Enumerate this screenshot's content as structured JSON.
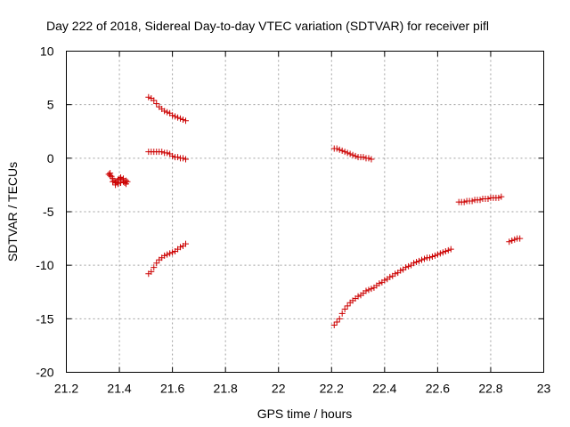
{
  "chart_data": {
    "type": "scatter",
    "title": "Day 222 of 2018, Sidereal Day-to-day VTEC variation (SDTVAR) for receiver pifl",
    "xlabel": "GPS time / hours",
    "ylabel": "SDTVAR / TECUs",
    "xlim": [
      21.2,
      23.0
    ],
    "ylim": [
      -20,
      10
    ],
    "xticks": [
      "21.2",
      "21.4",
      "21.6",
      "21.8",
      "22",
      "22.2",
      "22.4",
      "22.6",
      "22.8",
      "23"
    ],
    "yticks": [
      "-20",
      "-15",
      "-10",
      "-5",
      "0",
      "5",
      "10"
    ],
    "grid": true,
    "marker": "plus",
    "color": "#cc0000",
    "series": [
      {
        "x": [
          21.51,
          21.52,
          21.53,
          21.54,
          21.55,
          21.56,
          21.57,
          21.58,
          21.59,
          21.6,
          21.61,
          21.62,
          21.63,
          21.64,
          21.65
        ],
        "y": [
          5.7,
          5.6,
          5.4,
          5.1,
          4.8,
          4.6,
          4.4,
          4.3,
          4.2,
          4.0,
          3.9,
          3.8,
          3.7,
          3.6,
          3.5
        ]
      },
      {
        "x": [
          21.51,
          21.52,
          21.53,
          21.54,
          21.55,
          21.56,
          21.57,
          21.58,
          21.59,
          21.6,
          21.61,
          21.62,
          21.63,
          21.64,
          21.65
        ],
        "y": [
          0.6,
          0.6,
          0.6,
          0.6,
          0.6,
          0.6,
          0.5,
          0.5,
          0.4,
          0.2,
          0.1,
          0.1,
          0.0,
          0.0,
          -0.1
        ]
      },
      {
        "x": [
          21.51,
          21.52,
          21.53,
          21.54,
          21.55,
          21.56,
          21.57,
          21.58,
          21.59,
          21.6,
          21.61,
          21.62,
          21.63,
          21.64,
          21.65
        ],
        "y": [
          -10.8,
          -10.6,
          -10.2,
          -9.8,
          -9.5,
          -9.3,
          -9.1,
          -9.0,
          -8.9,
          -8.8,
          -8.7,
          -8.5,
          -8.3,
          -8.2,
          -8.0
        ]
      },
      {
        "x": [
          21.36,
          21.365,
          21.37,
          21.375,
          21.38,
          21.385,
          21.39,
          21.395,
          21.4,
          21.405,
          21.41,
          21.415,
          21.42,
          21.425,
          21.43,
          21.365,
          21.375,
          21.385,
          21.395,
          21.405,
          21.415,
          21.425
        ],
        "y": [
          -1.5,
          -1.6,
          -1.7,
          -1.9,
          -2.1,
          -2.3,
          -2.2,
          -2.0,
          -1.9,
          -1.8,
          -2.0,
          -2.2,
          -2.3,
          -2.4,
          -2.2,
          -1.4,
          -2.2,
          -2.5,
          -2.4,
          -2.3,
          -1.9,
          -2.1
        ]
      },
      {
        "x": [
          22.21,
          22.22,
          22.23,
          22.24,
          22.25,
          22.26,
          22.27,
          22.28,
          22.29,
          22.3,
          22.31,
          22.32,
          22.33,
          22.34,
          22.35
        ],
        "y": [
          0.9,
          0.9,
          0.8,
          0.7,
          0.6,
          0.5,
          0.4,
          0.3,
          0.2,
          0.1,
          0.1,
          0.1,
          0.0,
          0.0,
          -0.1
        ]
      },
      {
        "x": [
          22.21,
          22.22,
          22.23,
          22.24,
          22.25,
          22.26,
          22.27,
          22.28,
          22.29,
          22.3,
          22.31,
          22.32,
          22.33,
          22.34,
          22.35,
          22.36,
          22.37,
          22.38,
          22.39,
          22.4,
          22.41,
          22.42,
          22.43,
          22.44,
          22.45,
          22.46,
          22.47,
          22.48,
          22.49,
          22.5,
          22.51,
          22.52,
          22.53,
          22.54,
          22.55,
          22.56,
          22.57,
          22.58,
          22.59,
          22.6,
          22.61,
          22.62,
          22.63,
          22.64,
          22.65
        ],
        "y": [
          -15.6,
          -15.3,
          -15.0,
          -14.5,
          -14.1,
          -13.8,
          -13.5,
          -13.3,
          -13.1,
          -12.9,
          -12.8,
          -12.6,
          -12.4,
          -12.3,
          -12.2,
          -12.1,
          -11.9,
          -11.7,
          -11.6,
          -11.4,
          -11.3,
          -11.1,
          -11.0,
          -10.8,
          -10.7,
          -10.5,
          -10.4,
          -10.2,
          -10.1,
          -10.0,
          -9.8,
          -9.7,
          -9.6,
          -9.5,
          -9.4,
          -9.3,
          -9.3,
          -9.2,
          -9.1,
          -9.0,
          -8.9,
          -8.8,
          -8.7,
          -8.6,
          -8.5
        ]
      },
      {
        "x": [
          22.68,
          22.69,
          22.7,
          22.71,
          22.72,
          22.73,
          22.74,
          22.75,
          22.76,
          22.77,
          22.78,
          22.79,
          22.8,
          22.81,
          22.82,
          22.83,
          22.84
        ],
        "y": [
          -4.1,
          -4.1,
          -4.1,
          -4.0,
          -4.0,
          -4.0,
          -3.9,
          -3.9,
          -3.9,
          -3.8,
          -3.8,
          -3.8,
          -3.7,
          -3.7,
          -3.7,
          -3.7,
          -3.6
        ]
      },
      {
        "x": [
          22.87,
          22.88,
          22.89,
          22.9,
          22.91
        ],
        "y": [
          -7.8,
          -7.7,
          -7.6,
          -7.5,
          -7.5
        ]
      }
    ]
  }
}
